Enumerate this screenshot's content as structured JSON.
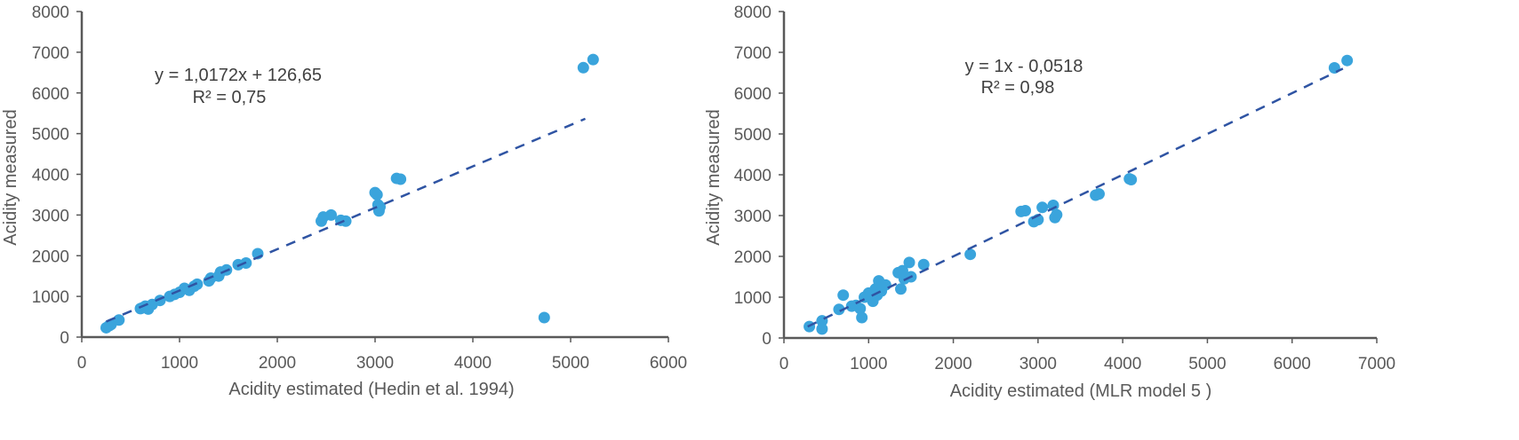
{
  "chart_data": [
    {
      "type": "scatter",
      "xlabel": "Acidity estimated (Hedin et al. 1994)",
      "ylabel": "Acidity measured",
      "xlim": [
        0,
        6000
      ],
      "ylim": [
        0,
        8000
      ],
      "xticks": [
        0,
        1000,
        2000,
        3000,
        4000,
        5000,
        6000
      ],
      "yticks": [
        0,
        1000,
        2000,
        3000,
        4000,
        5000,
        6000,
        7000,
        8000
      ],
      "grid": false,
      "legend": "none",
      "annotations": [
        "y = 1,0172x + 126,65",
        "R² = 0,75"
      ],
      "trendline": {
        "x": [
          250,
          5150
        ],
        "y": [
          381,
          5365
        ],
        "style": "dashed"
      },
      "series": [
        {
          "color": "#3aa4dc",
          "points": [
            [
              250,
              230
            ],
            [
              280,
              280
            ],
            [
              300,
              310
            ],
            [
              380,
              420
            ],
            [
              600,
              700
            ],
            [
              620,
              720
            ],
            [
              650,
              760
            ],
            [
              680,
              690
            ],
            [
              720,
              800
            ],
            [
              800,
              900
            ],
            [
              900,
              1000
            ],
            [
              950,
              1050
            ],
            [
              1000,
              1100
            ],
            [
              1050,
              1200
            ],
            [
              1100,
              1150
            ],
            [
              1150,
              1250
            ],
            [
              1180,
              1300
            ],
            [
              1300,
              1380
            ],
            [
              1320,
              1450
            ],
            [
              1400,
              1500
            ],
            [
              1420,
              1600
            ],
            [
              1480,
              1650
            ],
            [
              1600,
              1780
            ],
            [
              1680,
              1820
            ],
            [
              1800,
              2050
            ],
            [
              2450,
              2850
            ],
            [
              2470,
              2950
            ],
            [
              2550,
              3000
            ],
            [
              2650,
              2870
            ],
            [
              2700,
              2850
            ],
            [
              3000,
              3550
            ],
            [
              3020,
              3500
            ],
            [
              3030,
              3250
            ],
            [
              3040,
              3100
            ],
            [
              3050,
              3200
            ],
            [
              3220,
              3900
            ],
            [
              3260,
              3880
            ],
            [
              4730,
              480
            ],
            [
              5130,
              6620
            ],
            [
              5230,
              6820
            ]
          ]
        }
      ]
    },
    {
      "type": "scatter",
      "xlabel": "Acidity estimated (MLR model 5 )",
      "ylabel": "Acidity measured",
      "xlim": [
        0,
        7000
      ],
      "ylim": [
        0,
        8000
      ],
      "xticks": [
        0,
        1000,
        2000,
        3000,
        4000,
        5000,
        6000,
        7000
      ],
      "yticks": [
        0,
        1000,
        2000,
        3000,
        4000,
        5000,
        6000,
        7000,
        8000
      ],
      "grid": false,
      "legend": "none",
      "annotations": [
        "y = 1x - 0,0518",
        "R² = 0,98"
      ],
      "trendline": {
        "x": [
          280,
          6600
        ],
        "y": [
          280,
          6600
        ],
        "style": "dashed"
      },
      "series": [
        {
          "color": "#3aa4dc",
          "points": [
            [
              300,
              280
            ],
            [
              450,
              420
            ],
            [
              450,
              220
            ],
            [
              650,
              700
            ],
            [
              700,
              1050
            ],
            [
              800,
              780
            ],
            [
              850,
              800
            ],
            [
              900,
              720
            ],
            [
              920,
              500
            ],
            [
              950,
              1000
            ],
            [
              1000,
              1100
            ],
            [
              1050,
              900
            ],
            [
              1080,
              1200
            ],
            [
              1100,
              1050
            ],
            [
              1120,
              1400
            ],
            [
              1150,
              1150
            ],
            [
              1200,
              1300
            ],
            [
              1350,
              1600
            ],
            [
              1380,
              1200
            ],
            [
              1400,
              1650
            ],
            [
              1420,
              1450
            ],
            [
              1480,
              1850
            ],
            [
              1500,
              1500
            ],
            [
              1650,
              1800
            ],
            [
              2200,
              2050
            ],
            [
              2800,
              3100
            ],
            [
              2850,
              3120
            ],
            [
              2950,
              2850
            ],
            [
              3000,
              2900
            ],
            [
              3050,
              3200
            ],
            [
              3180,
              3250
            ],
            [
              3200,
              2950
            ],
            [
              3220,
              3020
            ],
            [
              3680,
              3500
            ],
            [
              3720,
              3530
            ],
            [
              4080,
              3900
            ],
            [
              4100,
              3880
            ],
            [
              6500,
              6620
            ],
            [
              6650,
              6800
            ]
          ]
        }
      ]
    }
  ]
}
